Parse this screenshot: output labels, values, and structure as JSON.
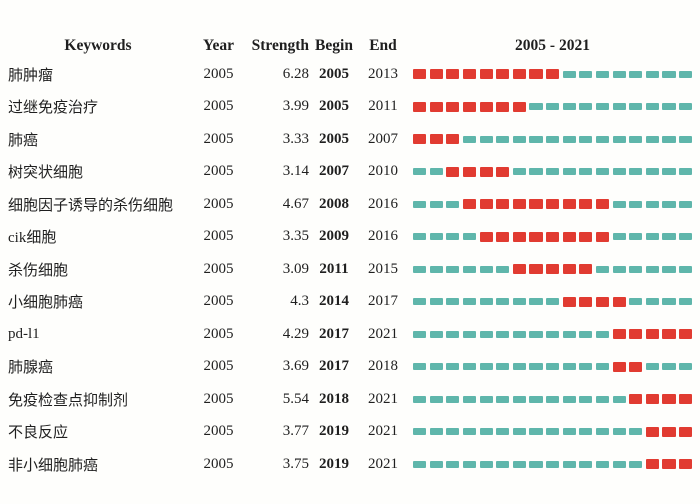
{
  "header": {
    "keywords": "Keywords",
    "year": "Year",
    "strength": "Strength",
    "begin": "Begin",
    "end": "End",
    "range": "2005 - 2021"
  },
  "timeline": {
    "start_year": 2005,
    "end_year": 2021,
    "segments_per_row": 17
  },
  "colors": {
    "burst": "#e13b31",
    "base": "#5fb6ab",
    "text": "#1f1f1f",
    "background": "#fefefc"
  },
  "rows": [
    {
      "keyword": "肺肿瘤",
      "year": "2005",
      "strength": "6.28",
      "begin": "2005",
      "end": "2013"
    },
    {
      "keyword": "过继免疫治疗",
      "year": "2005",
      "strength": "3.99",
      "begin": "2005",
      "end": "2011"
    },
    {
      "keyword": "肺癌",
      "year": "2005",
      "strength": "3.33",
      "begin": "2005",
      "end": "2007"
    },
    {
      "keyword": "树突状细胞",
      "year": "2005",
      "strength": "3.14",
      "begin": "2007",
      "end": "2010"
    },
    {
      "keyword": "细胞因子诱导的杀伤细胞",
      "year": "2005",
      "strength": "4.67",
      "begin": "2008",
      "end": "2016"
    },
    {
      "keyword": "cik细胞",
      "year": "2005",
      "strength": "3.35",
      "begin": "2009",
      "end": "2016"
    },
    {
      "keyword": "杀伤细胞",
      "year": "2005",
      "strength": "3.09",
      "begin": "2011",
      "end": "2015"
    },
    {
      "keyword": "小细胞肺癌",
      "year": "2005",
      "strength": "4.3",
      "begin": "2014",
      "end": "2017"
    },
    {
      "keyword": "pd-l1",
      "year": "2005",
      "strength": "4.29",
      "begin": "2017",
      "end": "2021"
    },
    {
      "keyword": "肺腺癌",
      "year": "2005",
      "strength": "3.69",
      "begin": "2017",
      "end": "2018"
    },
    {
      "keyword": "免疫检查点抑制剂",
      "year": "2005",
      "strength": "5.54",
      "begin": "2018",
      "end": "2021"
    },
    {
      "keyword": "不良反应",
      "year": "2005",
      "strength": "3.77",
      "begin": "2019",
      "end": "2021"
    },
    {
      "keyword": "非小细胞肺癌",
      "year": "2005",
      "strength": "3.75",
      "begin": "2019",
      "end": "2021"
    }
  ],
  "chart_data": {
    "type": "table",
    "title": "",
    "description": "Keyword citation burst timeline, red segments mark burst period from Begin to End year, teal segments mark non-burst years",
    "columns": [
      "Keywords",
      "Year",
      "Strength",
      "Begin",
      "End",
      "2005 - 2021"
    ],
    "x_range": [
      2005,
      2021
    ],
    "categories": [
      "肺肿瘤",
      "过继免疫治疗",
      "肺癌",
      "树突状细胞",
      "细胞因子诱导的杀伤细胞",
      "cik细胞",
      "杀伤细胞",
      "小细胞肺癌",
      "pd-l1",
      "肺腺癌",
      "免疫检查点抑制剂",
      "不良反应",
      "非小细胞肺癌"
    ],
    "series": [
      {
        "name": "Year",
        "values": [
          2005,
          2005,
          2005,
          2005,
          2005,
          2005,
          2005,
          2005,
          2005,
          2005,
          2005,
          2005,
          2005
        ]
      },
      {
        "name": "Strength",
        "values": [
          6.28,
          3.99,
          3.33,
          3.14,
          4.67,
          3.35,
          3.09,
          4.3,
          4.29,
          3.69,
          5.54,
          3.77,
          3.75
        ]
      },
      {
        "name": "Begin",
        "values": [
          2005,
          2005,
          2005,
          2007,
          2008,
          2009,
          2011,
          2014,
          2017,
          2017,
          2018,
          2019,
          2019
        ]
      },
      {
        "name": "End",
        "values": [
          2013,
          2011,
          2007,
          2010,
          2016,
          2016,
          2015,
          2017,
          2021,
          2018,
          2021,
          2021,
          2021
        ]
      }
    ],
    "legend": {
      "burst_color": "#e13b31",
      "base_color": "#5fb6ab"
    },
    "grid": false
  }
}
